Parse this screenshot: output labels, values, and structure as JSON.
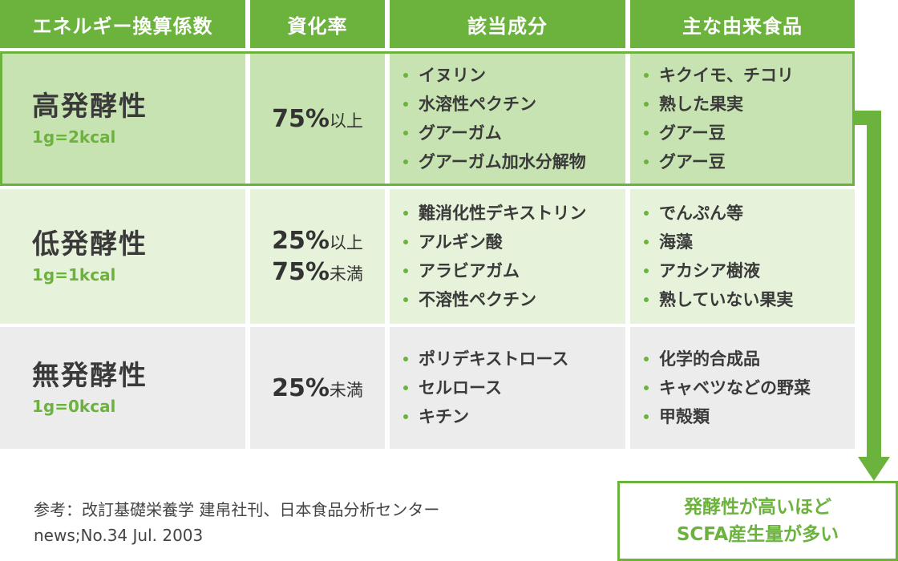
{
  "table": {
    "headers": [
      "エネルギー換算係数",
      "資化率",
      "該当成分",
      "主な由来食品"
    ],
    "rows": [
      {
        "name": "高発酵性",
        "kcal": "1g=2kcal",
        "rate": [
          {
            "pct": "75%",
            "suffix": "以上"
          }
        ],
        "components": [
          "イヌリン",
          "水溶性ペクチン",
          "グアーガム",
          "グアーガム加水分解物"
        ],
        "foods": [
          "キクイモ、チコリ",
          "熟した果実",
          "グアー豆",
          "グアー豆"
        ]
      },
      {
        "name": "低発酵性",
        "kcal": "1g=1kcal",
        "rate": [
          {
            "pct": "25%",
            "suffix": "以上"
          },
          {
            "pct": "75%",
            "suffix": "未満"
          }
        ],
        "components": [
          "難消化性デキストリン",
          "アルギン酸",
          "アラビアガム",
          "不溶性ペクチン"
        ],
        "foods": [
          "でんぷん等",
          "海藻",
          "アカシア樹液",
          "熟していない果実"
        ]
      },
      {
        "name": "無発酵性",
        "kcal": "1g=0kcal",
        "rate": [
          {
            "pct": "25%",
            "suffix": "未満"
          }
        ],
        "components": [
          "ポリデキストロース",
          "セルロース",
          "キチン"
        ],
        "foods": [
          "化学的合成品",
          "キャベツなどの野菜",
          "甲殻類"
        ]
      }
    ]
  },
  "result": {
    "line1": "発酵性が高いほど",
    "line2": "SCFA産生量が多い"
  },
  "reference": {
    "line1": "参考：改訂基礎栄養学 建帛社刊、日本食品分析センター",
    "line2": "news;No.34 Jul. 2003"
  },
  "colors": {
    "accent": "#6cb33e",
    "row1": "#c8e3b2",
    "row2": "#e6f2da",
    "row3": "#ececec"
  }
}
